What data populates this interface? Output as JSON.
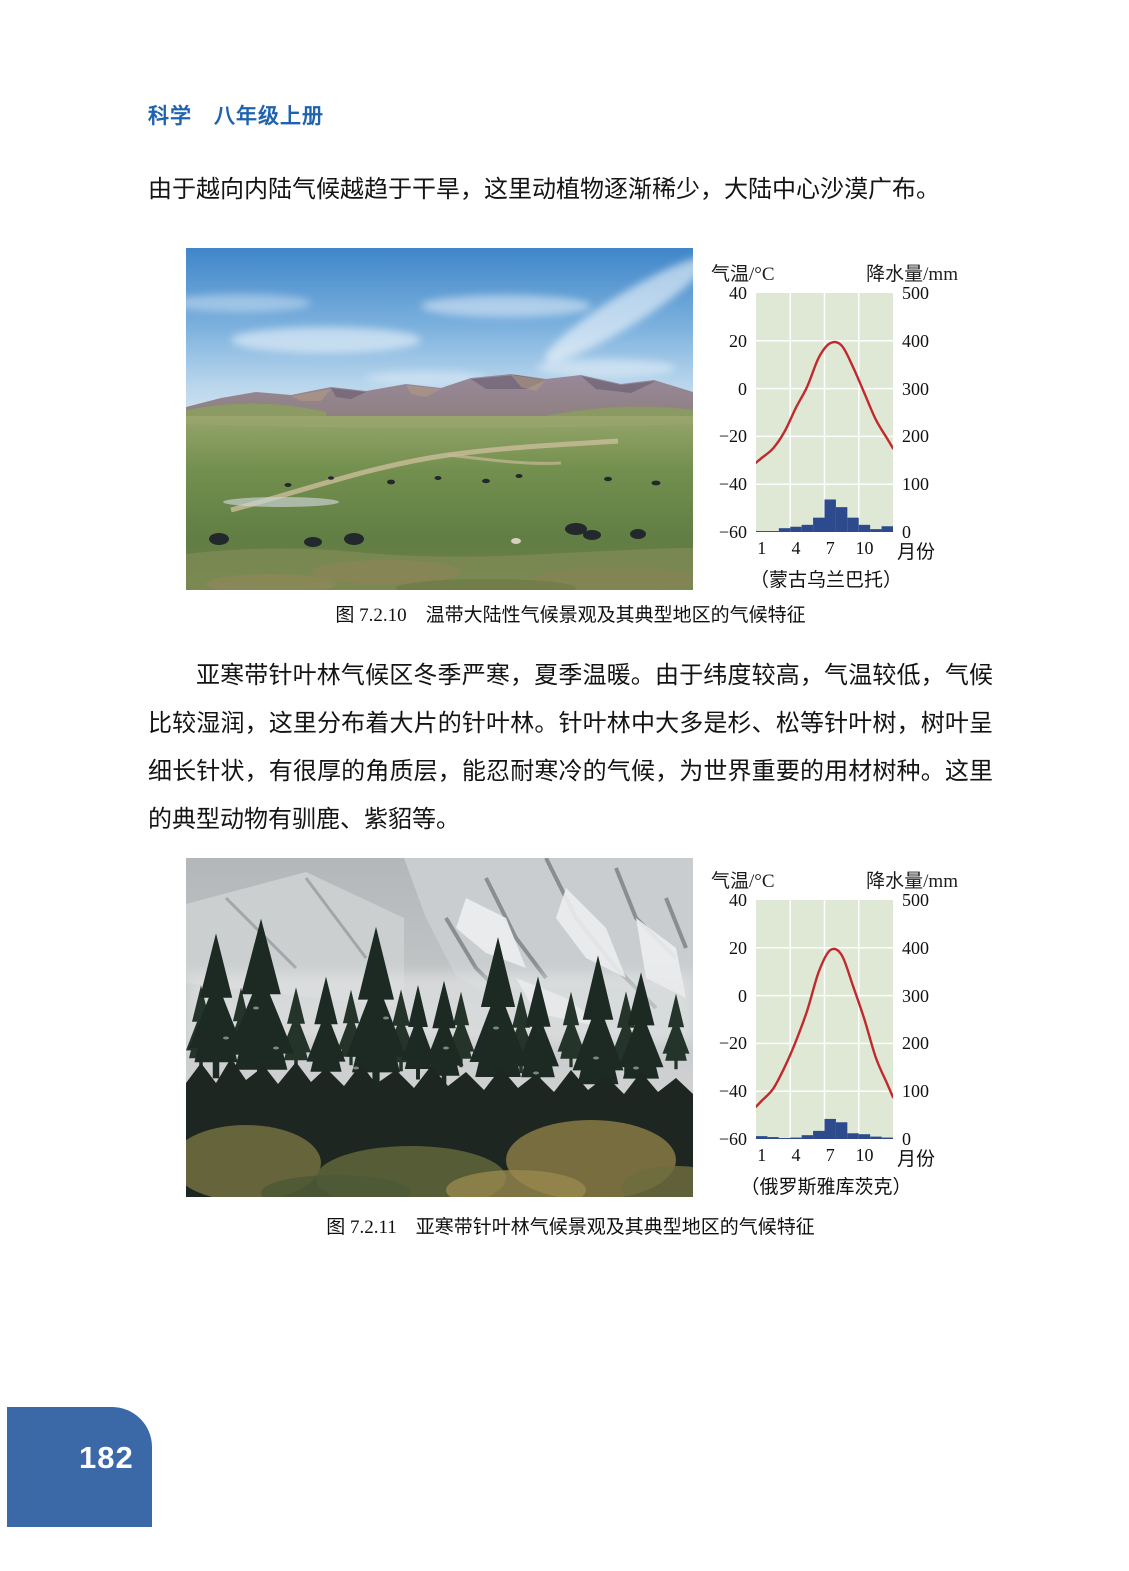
{
  "page": {
    "header": "科学　八年级上册",
    "page_number": "182",
    "intro_paragraph": "由于越向内陆气候越趋于干旱，这里动植物逐渐稀少，大陆中心沙漠广布。",
    "body_paragraph": "亚寒带针叶林气候区冬季严寒，夏季温暖。由于纬度较高，气温较低，气候比较湿润，这里分布着大片的针叶林。针叶林中大多是杉、松等针叶树，树叶呈细长针状，有很厚的角质层，能忍耐寒冷的气候，为世界重要的用材树种。这里的典型动物有驯鹿、紫貂等。"
  },
  "figures": {
    "fig1_caption": "图 7.2.10　温带大陆性气候景观及其典型地区的气候特征",
    "fig2_caption": "图 7.2.11　亚寒带针叶林气候景观及其典型地区的气候特征"
  },
  "theme": {
    "header_blue": "#1f63ae",
    "tab_blue": "#3b69a7",
    "text_black": "#141414"
  },
  "chart_data": [
    {
      "type": "line",
      "subtype": "climograph-temperature-line-precipitation-bar",
      "station": "（蒙古乌兰巴托）",
      "months_label": "月份",
      "temp_axis": {
        "title": "气温/°C",
        "ticks": [
          "40",
          "20",
          "0",
          "−20",
          "−40",
          "−60"
        ],
        "range": [
          40,
          -60
        ]
      },
      "precip_axis": {
        "title": "降水量/mm",
        "ticks": [
          "500",
          "400",
          "300",
          "200",
          "100",
          "0"
        ],
        "range": [
          500,
          0
        ]
      },
      "x_tick_months": [
        1,
        4,
        7,
        10
      ],
      "months": [
        1,
        2,
        3,
        4,
        5,
        6,
        7,
        8,
        9,
        10,
        11,
        12
      ],
      "temperature_c": [
        -29,
        -25,
        -18,
        -8,
        1,
        13,
        19,
        18,
        9,
        -2,
        -13,
        -21
      ],
      "precipitation_mm": [
        2,
        2,
        8,
        11,
        15,
        30,
        68,
        52,
        30,
        15,
        6,
        12
      ],
      "colors": {
        "line": "#c1292d",
        "bar": "#2c4a8c",
        "plot_bg": "#dfe8d5",
        "grid": "#ffffff"
      },
      "grid": "on",
      "legend": "none"
    },
    {
      "type": "line",
      "subtype": "climograph-temperature-line-precipitation-bar",
      "station": "（俄罗斯雅库茨克）",
      "months_label": "月份",
      "temp_axis": {
        "title": "气温/°C",
        "ticks": [
          "40",
          "20",
          "0",
          "−20",
          "−40",
          "−60"
        ],
        "range": [
          40,
          -60
        ]
      },
      "precip_axis": {
        "title": "降水量/mm",
        "ticks": [
          "500",
          "400",
          "300",
          "200",
          "100",
          "0"
        ],
        "range": [
          500,
          0
        ]
      },
      "x_tick_months": [
        1,
        4,
        7,
        10
      ],
      "months": [
        1,
        2,
        3,
        4,
        5,
        6,
        7,
        8,
        9,
        10,
        11,
        12
      ],
      "temperature_c": [
        -44,
        -39,
        -30,
        -19,
        -6,
        10,
        19,
        17,
        4,
        -10,
        -26,
        -37
      ],
      "precipitation_mm": [
        6,
        4,
        2,
        3,
        8,
        17,
        42,
        35,
        12,
        10,
        5,
        3
      ],
      "colors": {
        "line": "#c1292d",
        "bar": "#2c4a8c",
        "plot_bg": "#dfe8d5",
        "grid": "#ffffff"
      },
      "grid": "on",
      "legend": "none"
    }
  ]
}
